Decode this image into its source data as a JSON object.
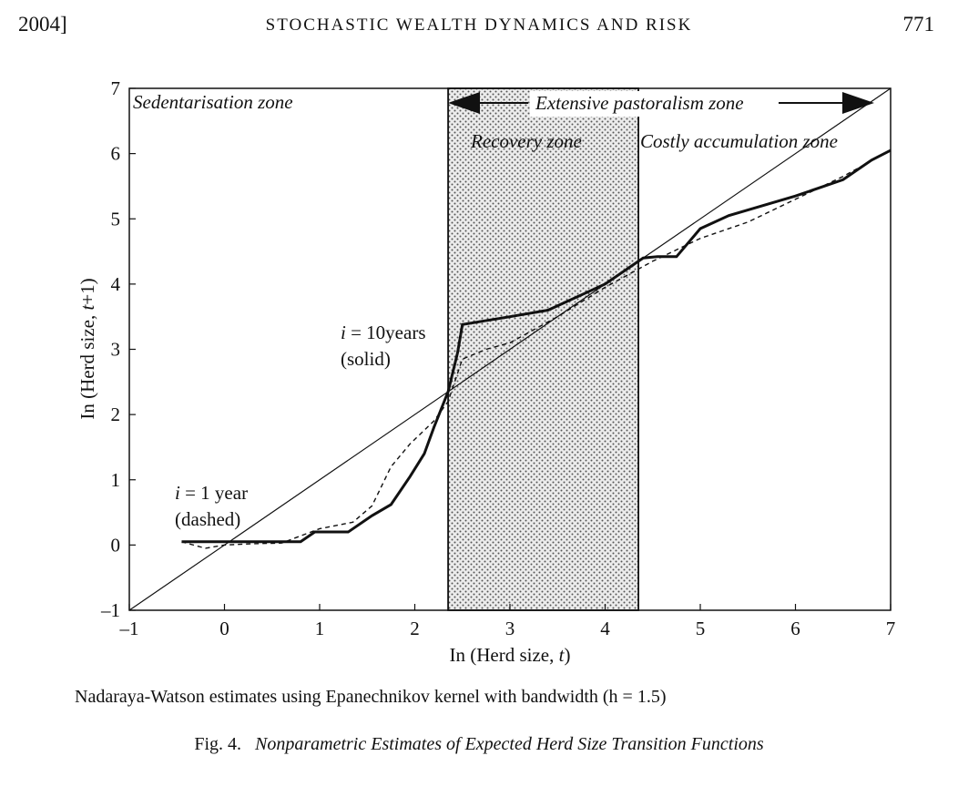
{
  "header": {
    "year": "2004]",
    "title": "STOCHASTIC WEALTH DYNAMICS AND RISK",
    "page": "771"
  },
  "chart_data": {
    "type": "line",
    "xlabel_prefix": "In (Herd size, ",
    "xlabel_var": "t",
    "xlabel_suffix": ")",
    "ylabel_prefix": "In (Herd size, ",
    "ylabel_var": "t",
    "ylabel_suffix": "+1)",
    "xlim": [
      -1,
      7
    ],
    "ylim": [
      -1,
      7
    ],
    "xticks": [
      "–1",
      "0",
      "1",
      "2",
      "3",
      "4",
      "5",
      "6",
      "7"
    ],
    "yticks": [
      "–1",
      "0",
      "1",
      "2",
      "3",
      "4",
      "5",
      "6",
      "7"
    ],
    "shaded_region": {
      "x0": 2.35,
      "x1": 4.35
    },
    "zones": {
      "sedentarisation": "Sedentarisation zone",
      "extensive": "Extensive pastoralism zone",
      "recovery": "Recovery zone",
      "costly": "Costly accumulation zone"
    },
    "series": [
      {
        "name": "45-degree line",
        "style": "thin",
        "x": [
          -1,
          7
        ],
        "y": [
          -1,
          7
        ]
      },
      {
        "name": "i = 10years (solid)",
        "style": "solid",
        "x": [
          -0.45,
          0.8,
          0.95,
          1.3,
          1.55,
          1.75,
          1.95,
          2.1,
          2.2,
          2.35,
          2.45,
          2.5,
          3.0,
          3.4,
          4.0,
          4.4,
          4.55,
          4.75,
          5.0,
          5.3,
          5.65,
          6.0,
          6.5,
          6.8,
          7.0
        ],
        "y": [
          0.05,
          0.05,
          0.2,
          0.2,
          0.45,
          0.62,
          1.05,
          1.4,
          1.8,
          2.35,
          2.95,
          3.38,
          3.5,
          3.6,
          4.0,
          4.4,
          4.42,
          4.42,
          4.85,
          5.05,
          5.2,
          5.35,
          5.6,
          5.9,
          6.05
        ]
      },
      {
        "name": "i = 1 year (dashed)",
        "style": "dashed",
        "x": [
          -0.45,
          -0.2,
          0.0,
          0.3,
          0.6,
          1.0,
          1.35,
          1.55,
          1.75,
          1.95,
          2.2,
          2.35,
          2.5,
          2.75,
          3.0,
          3.5,
          4.0,
          4.5,
          5.0,
          5.5,
          6.0,
          6.5,
          7.0
        ],
        "y": [
          0.05,
          -0.05,
          0.0,
          0.02,
          0.03,
          0.25,
          0.35,
          0.6,
          1.2,
          1.55,
          1.9,
          2.2,
          2.85,
          3.0,
          3.1,
          3.5,
          3.95,
          4.35,
          4.7,
          4.95,
          5.3,
          5.65,
          6.05
        ]
      }
    ],
    "annotations": {
      "solid_line1": "i = 10years",
      "solid_line2": "(solid)",
      "dashed_line1": "i = 1 year",
      "dashed_line2": "(dashed)"
    }
  },
  "note": "Nadaraya-Watson estimates using Epanechnikov kernel with bandwidth (h = 1.5)",
  "caption": {
    "label": "Fig. 4.",
    "title": "Nonparametric Estimates of Expected Herd Size Transition Functions"
  }
}
